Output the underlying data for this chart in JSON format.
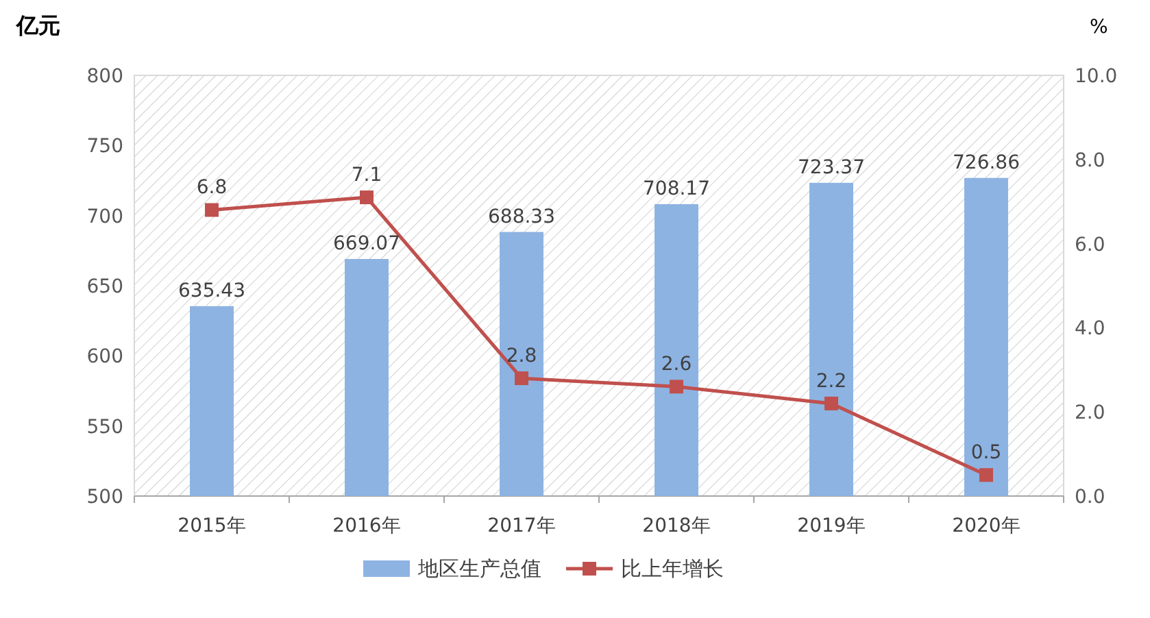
{
  "chart_data": {
    "type": "bar",
    "categories": [
      "2015年",
      "2016年",
      "2017年",
      "2018年",
      "2019年",
      "2020年"
    ],
    "series": [
      {
        "name": "地区生产总值",
        "color": "#8db3e2",
        "values": [
          635.43,
          669.07,
          688.33,
          708.17,
          723.37,
          726.86
        ]
      },
      {
        "name": "比上年增长",
        "type": "line",
        "axis": "y2",
        "color": "#c0504d",
        "values": [
          6.8,
          7.1,
          2.8,
          2.6,
          2.2,
          0.5
        ]
      }
    ],
    "ylabel": "亿元",
    "y2label": "%",
    "ylim": [
      500,
      800
    ],
    "yticks": [
      500,
      550,
      600,
      650,
      700,
      750,
      800
    ],
    "y2lim": [
      0,
      10
    ],
    "y2ticks": [
      {
        "value": 0,
        "label": "0.0"
      },
      {
        "value": 2,
        "label": "2.0"
      },
      {
        "value": 4,
        "label": "4.0"
      },
      {
        "value": 6,
        "label": "6.0"
      },
      {
        "value": 8,
        "label": "8.0"
      },
      {
        "value": 10,
        "label": "10.0"
      }
    ],
    "data_labels": true,
    "legend": "bottom",
    "marker": "square",
    "line_style": "solid"
  }
}
